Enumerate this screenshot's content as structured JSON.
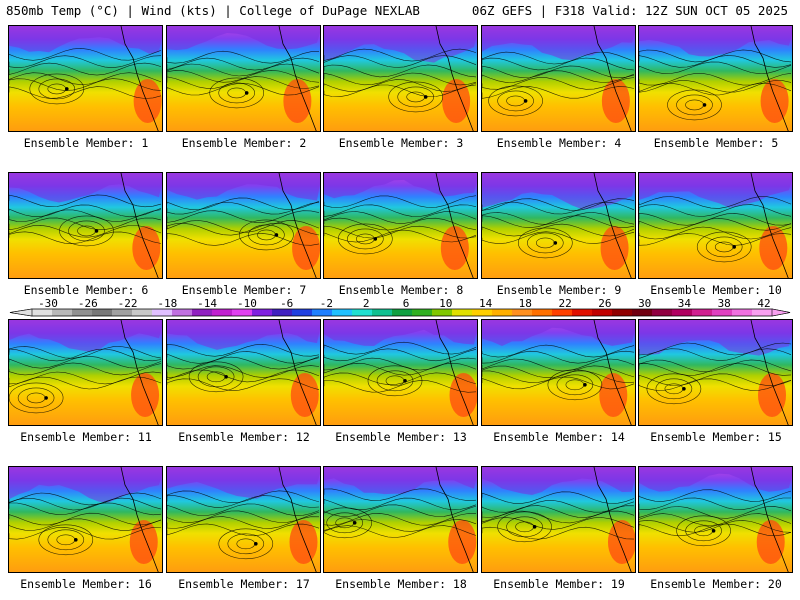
{
  "header": {
    "left": "850mb Temp (°C) | Wind (kts) | College of DuPage NEXLAB",
    "right": "06Z GEFS | F318 Valid: 12Z SUN OCT 05 2025"
  },
  "member_label": "Ensemble Member:",
  "members": [
    "1",
    "2",
    "3",
    "4",
    "5",
    "6",
    "7",
    "8",
    "9",
    "10",
    "11",
    "12",
    "13",
    "14",
    "15",
    "16",
    "17",
    "18",
    "19",
    "20"
  ],
  "colorbar": {
    "units": "°C",
    "ticks": [
      "-30",
      "-26",
      "-22",
      "-18",
      "-14",
      "-10",
      "-6",
      "-2",
      "2",
      "6",
      "10",
      "14",
      "18",
      "22",
      "26",
      "30",
      "34",
      "38",
      "42"
    ],
    "colors": [
      "#e0e0e0",
      "#b8b8b8",
      "#909090",
      "#787878",
      "#a0a0a0",
      "#c8c8c8",
      "#e0c0ff",
      "#c070e0",
      "#9020c0",
      "#c020d0",
      "#e040f0",
      "#8020e0",
      "#4020c0",
      "#2040e0",
      "#2080ff",
      "#20c0ff",
      "#20e0d0",
      "#10c090",
      "#10a040",
      "#30b020",
      "#80c800",
      "#e0e000",
      "#ffd000",
      "#ffb000",
      "#ff9020",
      "#ff7000",
      "#ff4000",
      "#e01000",
      "#c00000",
      "#900000",
      "#700010",
      "#900040",
      "#b00060",
      "#d02090",
      "#e040c0",
      "#f070e0",
      "#f8a0f0"
    ]
  }
}
